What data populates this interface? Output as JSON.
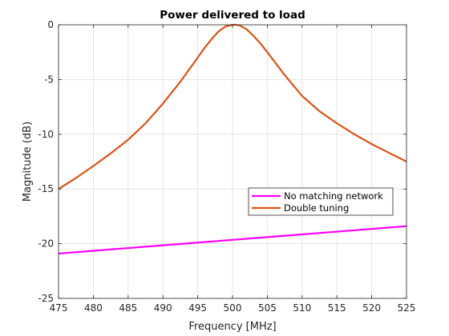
{
  "chart_data": {
    "type": "line",
    "title": "Power delivered to load",
    "xlabel": "Frequency [MHz]",
    "ylabel": "Magnitude (dB)",
    "xlim": [
      475,
      525
    ],
    "ylim": [
      -25,
      0
    ],
    "xticks": [
      475,
      480,
      485,
      490,
      495,
      500,
      505,
      510,
      515,
      520,
      525
    ],
    "yticks": [
      0,
      -5,
      -10,
      -15,
      -20,
      -25
    ],
    "grid": true,
    "legend_position": "center-right",
    "series": [
      {
        "name": "No matching network",
        "color": "#ff00ff",
        "x": [
          475,
          480,
          485,
          490,
          495,
          500,
          505,
          510,
          515,
          520,
          525
        ],
        "y": [
          -20.9,
          -20.65,
          -20.4,
          -20.15,
          -19.9,
          -19.65,
          -19.4,
          -19.15,
          -18.9,
          -18.65,
          -18.4
        ]
      },
      {
        "name": "Double tuning",
        "color": "#d95319",
        "x": [
          475,
          477.5,
          480,
          482.5,
          485,
          487.5,
          490,
          492.5,
          495,
          496,
          497,
          498,
          499,
          500,
          500.5,
          501,
          502,
          503,
          504,
          505,
          507.5,
          510,
          512.5,
          515,
          517.5,
          520,
          522.5,
          525
        ],
        "y": [
          -15.0,
          -14.0,
          -12.9,
          -11.75,
          -10.5,
          -9.0,
          -7.2,
          -5.2,
          -3.0,
          -2.1,
          -1.3,
          -0.6,
          -0.15,
          0.0,
          0.0,
          -0.05,
          -0.4,
          -1.0,
          -1.7,
          -2.5,
          -4.6,
          -6.5,
          -7.9,
          -9.0,
          -10.0,
          -10.9,
          -11.7,
          -12.5
        ]
      }
    ]
  }
}
